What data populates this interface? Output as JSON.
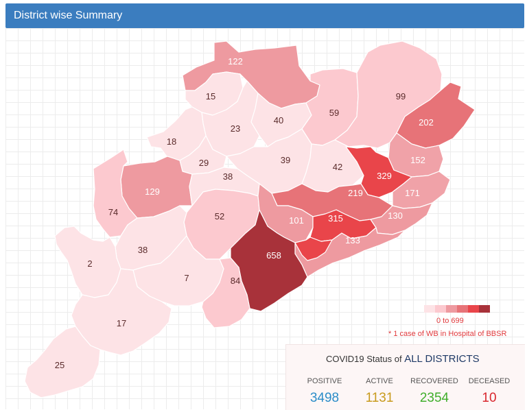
{
  "header": {
    "title": "District wise Summary"
  },
  "map": {
    "districts": [
      {
        "value": "122",
        "color": "#ee9aa0"
      },
      {
        "value": "15",
        "color": "#fde3e6"
      },
      {
        "value": "23",
        "color": "#fde3e6"
      },
      {
        "value": "40",
        "color": "#fde3e6"
      },
      {
        "value": "59",
        "color": "#fcc9cf"
      },
      {
        "value": "99",
        "color": "#fcc9cf"
      },
      {
        "value": "202",
        "color": "#e77378"
      },
      {
        "value": "18",
        "color": "#fde3e6"
      },
      {
        "value": "29",
        "color": "#fde3e6"
      },
      {
        "value": "39",
        "color": "#fde3e6"
      },
      {
        "value": "42",
        "color": "#fde3e6"
      },
      {
        "value": "329",
        "color": "#e9454a"
      },
      {
        "value": "152",
        "color": "#f0a2a8"
      },
      {
        "value": "129",
        "color": "#ee9aa0"
      },
      {
        "value": "38",
        "color": "#fde3e6"
      },
      {
        "value": "74",
        "color": "#fcc9cf"
      },
      {
        "value": "52",
        "color": "#fcc9cf"
      },
      {
        "value": "219",
        "color": "#e77378"
      },
      {
        "value": "171",
        "color": "#f0a2a8"
      },
      {
        "value": "101",
        "color": "#ee9aa0"
      },
      {
        "value": "315",
        "color": "#e9454a"
      },
      {
        "value": "130",
        "color": "#ee9aa0"
      },
      {
        "value": "133",
        "color": "#ee9aa0"
      },
      {
        "value": "38",
        "color": "#fde3e6"
      },
      {
        "value": "658",
        "color": "#a8323a"
      },
      {
        "value": "2",
        "color": "#fde3e6"
      },
      {
        "value": "7",
        "color": "#fde3e6"
      },
      {
        "value": "84",
        "color": "#fcc9cf"
      },
      {
        "value": "17",
        "color": "#fde3e6"
      },
      {
        "value": "25",
        "color": "#fde3e6"
      }
    ],
    "legend": {
      "colors": [
        "#fde3e6",
        "#fcc9cf",
        "#ee9aa0",
        "#e77378",
        "#e9454a",
        "#a8323a"
      ],
      "range": "0 to 699"
    },
    "footnote": "* 1 case of WB in Hospital of BBSR"
  },
  "status": {
    "title_prefix": "COVID19 Status of",
    "title_emphasis": "ALL DISTRICTS",
    "positive": {
      "label": "POSITIVE",
      "value": "3498",
      "color": "#2a8cc8"
    },
    "active": {
      "label": "ACTIVE",
      "value": "1131",
      "color": "#c89a1c"
    },
    "recovered": {
      "label": "RECOVERED",
      "value": "2354",
      "color": "#3fae2a"
    },
    "deceased": {
      "label": "DECEASED",
      "value": "10",
      "color": "#d9272e"
    }
  }
}
